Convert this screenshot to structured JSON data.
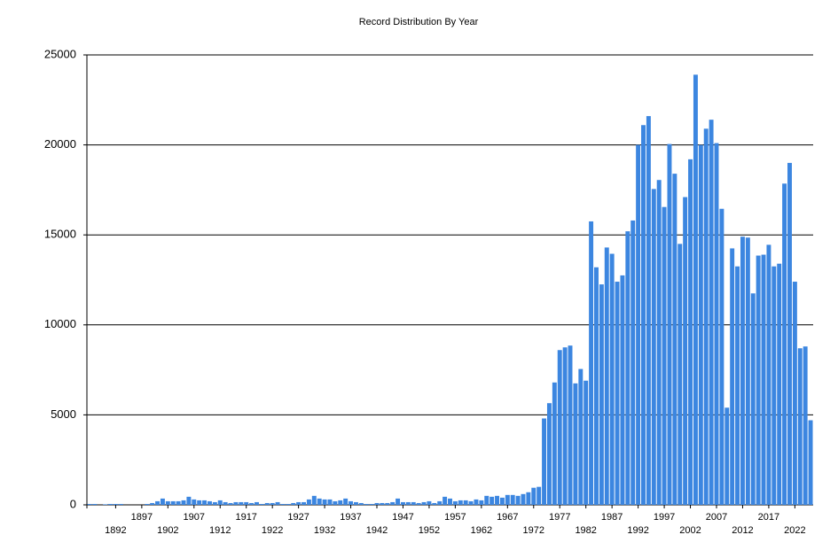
{
  "chart_data": {
    "type": "bar",
    "title": "Record Distribution By Year",
    "categories": [
      null,
      null,
      null,
      null,
      null,
      "1892",
      null,
      null,
      null,
      null,
      "1897",
      null,
      null,
      null,
      null,
      "1902",
      null,
      null,
      null,
      null,
      "1907",
      null,
      null,
      null,
      null,
      "1912",
      null,
      null,
      null,
      null,
      "1917",
      null,
      null,
      null,
      null,
      "1922",
      null,
      null,
      null,
      null,
      "1927",
      null,
      null,
      null,
      null,
      "1932",
      null,
      null,
      null,
      null,
      "1937",
      null,
      null,
      null,
      null,
      "1942",
      null,
      null,
      null,
      null,
      "1947",
      null,
      null,
      null,
      null,
      "1952",
      null,
      null,
      null,
      null,
      "1957",
      null,
      null,
      null,
      null,
      "1962",
      null,
      null,
      null,
      null,
      "1967",
      null,
      null,
      null,
      null,
      "1972",
      null,
      null,
      null,
      null,
      "1977",
      null,
      null,
      null,
      null,
      "1982",
      null,
      null,
      null,
      null,
      "1987",
      null,
      null,
      null,
      null,
      "1992",
      null,
      null,
      null,
      null,
      "1997",
      null,
      null,
      null,
      null,
      "2002",
      null,
      null,
      null,
      null,
      "2007",
      null,
      null,
      null,
      null,
      "2012",
      null,
      null,
      null,
      null,
      "2017",
      null,
      null,
      null,
      null,
      "2022",
      null,
      null,
      null
    ],
    "values": [
      50,
      50,
      0,
      30,
      50,
      50,
      50,
      0,
      0,
      0,
      0,
      50,
      100,
      200,
      350,
      200,
      200,
      200,
      250,
      450,
      300,
      250,
      250,
      200,
      150,
      250,
      150,
      100,
      150,
      150,
      150,
      100,
      150,
      50,
      100,
      100,
      150,
      50,
      50,
      100,
      150,
      150,
      300,
      500,
      350,
      300,
      300,
      200,
      250,
      350,
      200,
      150,
      100,
      50,
      50,
      100,
      100,
      100,
      150,
      350,
      150,
      150,
      150,
      100,
      150,
      200,
      100,
      200,
      450,
      350,
      200,
      250,
      250,
      200,
      300,
      250,
      500,
      450,
      500,
      400,
      550,
      550,
      500,
      600,
      700,
      950,
      1000,
      4800,
      5650,
      6800,
      8600,
      8750,
      8850,
      6750,
      7550,
      6900,
      15750,
      13200,
      12250,
      14300,
      13950,
      12400,
      12750,
      15200,
      15800,
      20000,
      21100,
      21600,
      17550,
      18050,
      16550,
      20050,
      18400,
      14500,
      17100,
      19200,
      23900,
      20000,
      20900,
      21400,
      20100,
      16450,
      5400,
      14250,
      13250,
      14900,
      14850,
      11750,
      13850,
      13900,
      14450,
      13250,
      13400,
      17850,
      19000,
      12400,
      8700,
      8800,
      4700
    ],
    "color": "#3c86e0",
    "ylim": [
      0,
      25000
    ],
    "yticks": [
      0,
      5000,
      10000,
      15000,
      20000,
      25000
    ],
    "grid": true
  }
}
